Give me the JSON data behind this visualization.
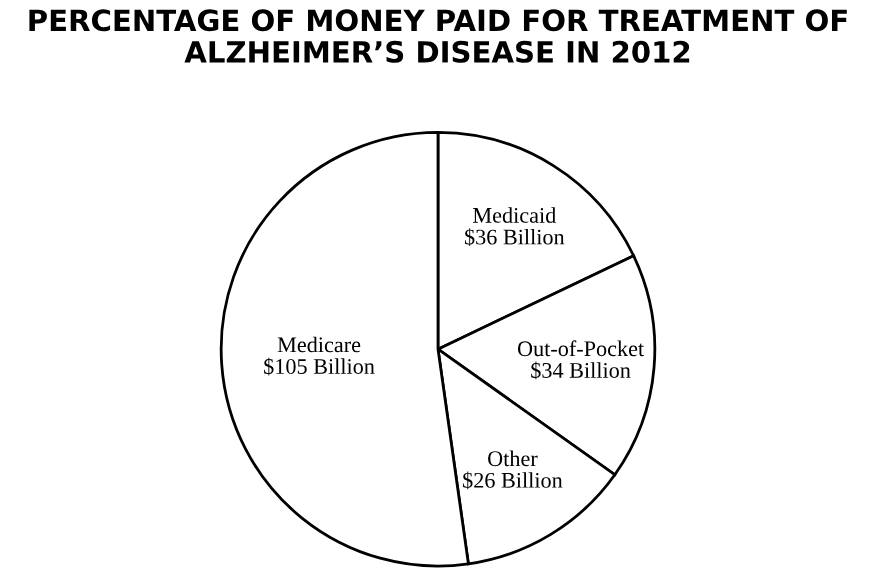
{
  "chart_data": {
    "type": "pie",
    "title": "PERCENTAGE OF MONEY PAID FOR TREATMENT OF\nALZHEIMER’S DISEASE IN 2012",
    "categories": [
      "Medicaid",
      "Out-of-Pocket",
      "Other",
      "Medicare"
    ],
    "values": [
      36,
      34,
      26,
      105
    ],
    "value_labels": [
      "$36 Billion",
      "$34 Billion",
      "$26 Billion",
      "$105 Billion"
    ],
    "colors": [
      "#ffffff",
      "#ffffff",
      "#ffffff",
      "#ffffff"
    ]
  }
}
